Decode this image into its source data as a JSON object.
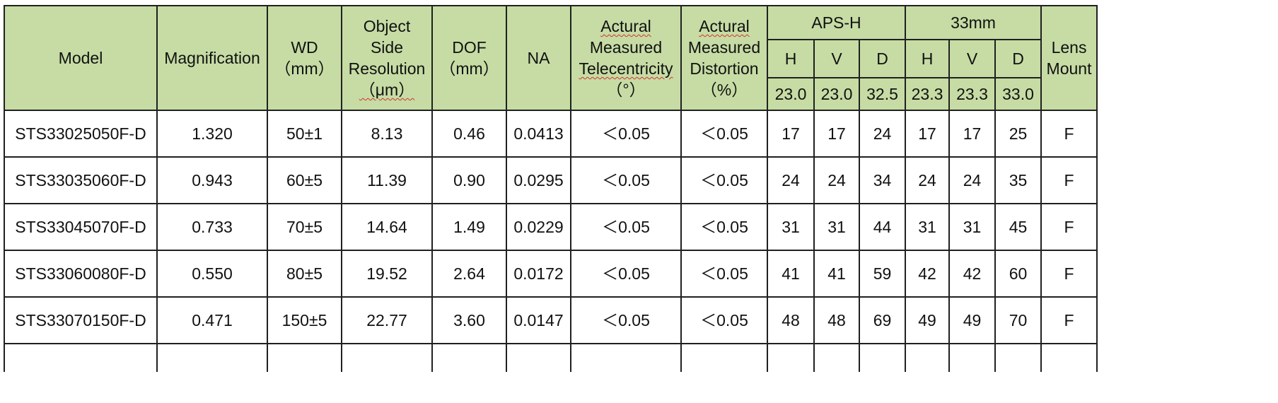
{
  "header": {
    "model": "Model",
    "magnification": "Magnification",
    "wd": [
      "WD",
      "（mm）"
    ],
    "resolution": [
      "Object",
      "Side",
      "Resolution",
      "（μm）"
    ],
    "dof": [
      "DOF",
      "（mm）"
    ],
    "na": "NA",
    "telecentricity": [
      "Actural",
      "Measured",
      "Telecentricity",
      "（°）"
    ],
    "distortion": [
      "Actural",
      "Measured",
      "Distortion",
      "（%）"
    ],
    "aps_h": {
      "label": "APS-H",
      "cols": [
        "H",
        "V",
        "D"
      ],
      "values": [
        "23.0",
        "23.0",
        "32.5"
      ]
    },
    "mm33": {
      "label": "33mm",
      "cols": [
        "H",
        "V",
        "D"
      ],
      "values": [
        "23.3",
        "23.3",
        "33.0"
      ]
    },
    "lens_mount": [
      "Lens",
      "Mount"
    ]
  },
  "rows": [
    {
      "model": "STS33025050F-D",
      "magnification": "1.320",
      "wd": "50±1",
      "resolution": "8.13",
      "dof": "0.46",
      "na": "0.0413",
      "telecentricity": "＜0.05",
      "distortion": "＜0.05",
      "aps_h": [
        "17",
        "17",
        "24"
      ],
      "mm33": [
        "17",
        "17",
        "25"
      ],
      "mount": "F"
    },
    {
      "model": "STS33035060F-D",
      "magnification": "0.943",
      "wd": "60±5",
      "resolution": "11.39",
      "dof": "0.90",
      "na": "0.0295",
      "telecentricity": "＜0.05",
      "distortion": "＜0.05",
      "aps_h": [
        "24",
        "24",
        "34"
      ],
      "mm33": [
        "24",
        "24",
        "35"
      ],
      "mount": "F"
    },
    {
      "model": "STS33045070F-D",
      "magnification": "0.733",
      "wd": "70±5",
      "resolution": "14.64",
      "dof": "1.49",
      "na": "0.0229",
      "telecentricity": "＜0.05",
      "distortion": "＜0.05",
      "aps_h": [
        "31",
        "31",
        "44"
      ],
      "mm33": [
        "31",
        "31",
        "45"
      ],
      "mount": "F"
    },
    {
      "model": "STS33060080F-D",
      "magnification": "0.550",
      "wd": "80±5",
      "resolution": "19.52",
      "dof": "2.64",
      "na": "0.0172",
      "telecentricity": "＜0.05",
      "distortion": "＜0.05",
      "aps_h": [
        "41",
        "41",
        "59"
      ],
      "mm33": [
        "42",
        "42",
        "60"
      ],
      "mount": "F"
    },
    {
      "model": "STS33070150F-D",
      "magnification": "0.471",
      "wd": "150±5",
      "resolution": "22.77",
      "dof": "3.60",
      "na": "0.0147",
      "telecentricity": "＜0.05",
      "distortion": "＜0.05",
      "aps_h": [
        "48",
        "48",
        "69"
      ],
      "mm33": [
        "49",
        "49",
        "70"
      ],
      "mount": "F"
    }
  ],
  "colors": {
    "header_bg": "#c6dca4",
    "border": "#202020",
    "spellcheck_underline": "#d83030"
  }
}
